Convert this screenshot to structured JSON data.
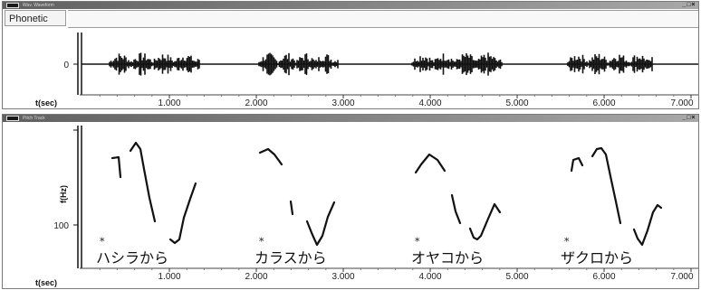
{
  "waveform_window": {
    "title": "Wav. Waveform",
    "controls": "_ □ ×",
    "tier_label": "Phonetic",
    "y_tick": "0",
    "x_axis_label": "t(sec)",
    "x_ticks": [
      "1.000",
      "2.000",
      "3.000",
      "4.000",
      "5.000",
      "6.000",
      "7.000"
    ]
  },
  "pitch_window": {
    "title": "Pitch Track",
    "controls": "_ □ ×",
    "y_axis_label": "f(Hz)",
    "y_tick": "100",
    "x_axis_label": "t(sec)",
    "x_ticks": [
      "1.000",
      "2.000",
      "3.000",
      "4.000",
      "5.000",
      "6.000",
      "7.000"
    ],
    "annotations": [
      {
        "marker": "*",
        "text": "ハシラから"
      },
      {
        "marker": "*",
        "text": "カラスから"
      },
      {
        "marker": "*",
        "text": "オヤコから"
      },
      {
        "marker": "*",
        "text": "ザクロから"
      }
    ]
  },
  "colors": {
    "trace": "#111111",
    "frame": "#7a7a7a",
    "titlebar": "#6f6f6f"
  }
}
